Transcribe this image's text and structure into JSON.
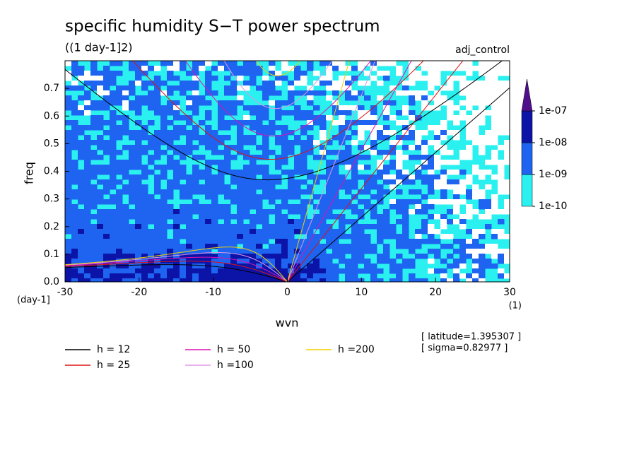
{
  "chart_data": {
    "type": "spectrum",
    "title": "specific humidity S−T power spectrum",
    "subtitle": "((1 day-1]2)",
    "run_label": "adj_control",
    "y_label": "freq",
    "x_label": "wvn",
    "y_unit": "(day-1]",
    "x_unit": "(1)",
    "notes": [
      "[ latitude=1.395307 ]",
      "[ sigma=0.82977 ]"
    ],
    "xlim": [
      -30,
      30
    ],
    "xticks": [
      -30,
      -20,
      -10,
      0,
      10,
      20,
      30
    ],
    "ylim": [
      0,
      0.8
    ],
    "yticks": [
      {
        "value": 0,
        "label": "0.0"
      },
      0.1,
      0.2,
      0.3,
      0.4,
      0.5,
      0.6,
      0.7
    ],
    "colorbar": {
      "ticks": [
        {
          "value": 1e-10,
          "label": "1e-10"
        },
        {
          "value": 1e-09,
          "label": "1e-09"
        },
        {
          "value": 1e-08,
          "label": "1e-08"
        },
        {
          "value": 1e-07,
          "label": "1e-07"
        }
      ],
      "colors": [
        "#2af0f0",
        "#1e64f0",
        "#0c14a8",
        "#50108c"
      ]
    },
    "series": [
      {
        "name": "h = 12",
        "h": 12,
        "color": "#000000"
      },
      {
        "name": "h = 25",
        "h": 25,
        "color": "#e01010"
      },
      {
        "name": "h = 50",
        "h": 50,
        "color": "#e010b0"
      },
      {
        "name": "h =100",
        "h": 100,
        "color": "#e098e8"
      },
      {
        "name": "h =200",
        "h": 200,
        "color": "#f0d000"
      }
    ]
  }
}
